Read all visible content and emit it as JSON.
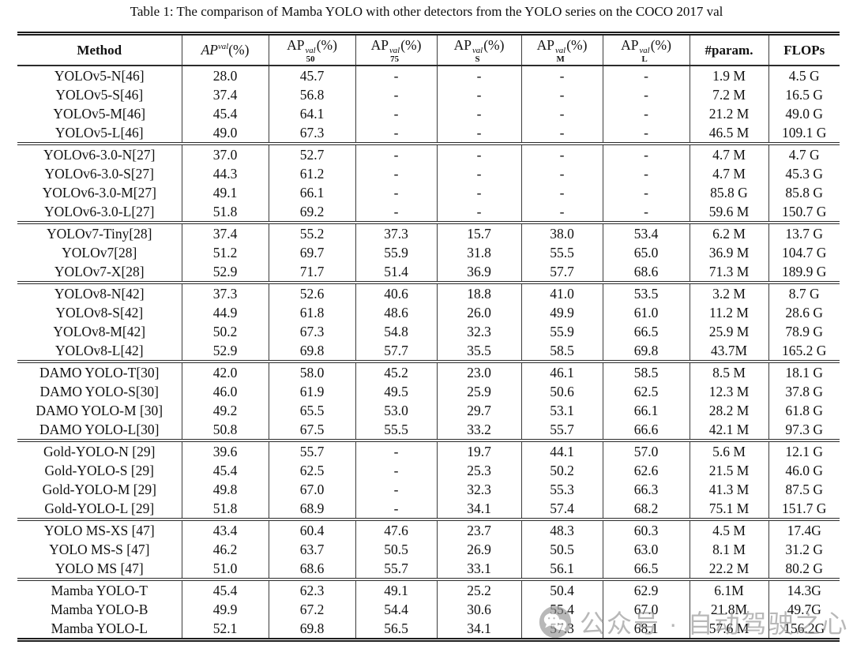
{
  "caption": "Table 1: The comparison of Mamba YOLO with other detectors from the YOLO series on the COCO 2017 val",
  "table": {
    "headers": [
      {
        "id": "method",
        "text": "Method"
      },
      {
        "id": "ap",
        "base": "AP",
        "sup": "val",
        "unit": "(%)",
        "italic": true
      },
      {
        "id": "ap50",
        "base": "AP",
        "sup": "val",
        "sub": "50",
        "unit": "(%)"
      },
      {
        "id": "ap75",
        "base": "AP",
        "sup": "val",
        "sub": "75",
        "unit": "(%)"
      },
      {
        "id": "aps",
        "base": "AP",
        "sup": "val",
        "sub": "S",
        "unit": "(%)"
      },
      {
        "id": "apm",
        "base": "AP",
        "sup": "val",
        "sub": "M",
        "unit": "(%)"
      },
      {
        "id": "apl",
        "base": "AP",
        "sup": "val",
        "sub": "L",
        "unit": "(%)"
      },
      {
        "id": "params",
        "text": "#param."
      },
      {
        "id": "flops",
        "text": "FLOPs"
      }
    ],
    "groups": [
      {
        "rows": [
          [
            "YOLOv5-N[46]",
            "28.0",
            "45.7",
            "-",
            "-",
            "-",
            "-",
            "1.9 M",
            "4.5 G"
          ],
          [
            "YOLOv5-S[46]",
            "37.4",
            "56.8",
            "-",
            "-",
            "-",
            "-",
            "7.2 M",
            "16.5 G"
          ],
          [
            "YOLOv5-M[46]",
            "45.4",
            "64.1",
            "-",
            "-",
            "-",
            "-",
            "21.2 M",
            "49.0 G"
          ],
          [
            "YOLOv5-L[46]",
            "49.0",
            "67.3",
            "-",
            "-",
            "-",
            "-",
            "46.5 M",
            "109.1 G"
          ]
        ]
      },
      {
        "rows": [
          [
            "YOLOv6-3.0-N[27]",
            "37.0",
            "52.7",
            "-",
            "-",
            "-",
            "-",
            "4.7 M",
            "4.7 G"
          ],
          [
            "YOLOv6-3.0-S[27]",
            "44.3",
            "61.2",
            "-",
            "-",
            "-",
            "-",
            "4.7 M",
            "45.3 G"
          ],
          [
            "YOLOv6-3.0-M[27]",
            "49.1",
            "66.1",
            "-",
            "-",
            "-",
            "-",
            "85.8 G",
            "85.8 G"
          ],
          [
            "YOLOv6-3.0-L[27]",
            "51.8",
            "69.2",
            "-",
            "-",
            "-",
            "-",
            "59.6 M",
            "150.7 G"
          ]
        ]
      },
      {
        "rows": [
          [
            "YOLOv7-Tiny[28]",
            "37.4",
            "55.2",
            "37.3",
            "15.7",
            "38.0",
            "53.4",
            "6.2 M",
            "13.7 G"
          ],
          [
            "YOLOv7[28]",
            "51.2",
            "69.7",
            "55.9",
            "31.8",
            "55.5",
            "65.0",
            "36.9 M",
            "104.7 G"
          ],
          [
            "YOLOv7-X[28]",
            "52.9",
            "71.7",
            "51.4",
            "36.9",
            "57.7",
            "68.6",
            "71.3 M",
            "189.9 G"
          ]
        ]
      },
      {
        "rows": [
          [
            "YOLOv8-N[42]",
            "37.3",
            "52.6",
            "40.6",
            "18.8",
            "41.0",
            "53.5",
            "3.2 M",
            "8.7 G"
          ],
          [
            "YOLOv8-S[42]",
            "44.9",
            "61.8",
            "48.6",
            "26.0",
            "49.9",
            "61.0",
            "11.2 M",
            "28.6 G"
          ],
          [
            "YOLOv8-M[42]",
            "50.2",
            "67.3",
            "54.8",
            "32.3",
            "55.9",
            "66.5",
            "25.9 M",
            "78.9 G"
          ],
          [
            "YOLOv8-L[42]",
            "52.9",
            "69.8",
            "57.7",
            "35.5",
            "58.5",
            "69.8",
            "43.7M",
            "165.2 G"
          ]
        ]
      },
      {
        "rows": [
          [
            "DAMO YOLO-T[30]",
            "42.0",
            "58.0",
            "45.2",
            "23.0",
            "46.1",
            "58.5",
            "8.5 M",
            "18.1 G"
          ],
          [
            "DAMO YOLO-S[30]",
            "46.0",
            "61.9",
            "49.5",
            "25.9",
            "50.6",
            "62.5",
            "12.3 M",
            "37.8 G"
          ],
          [
            "DAMO YOLO-M [30]",
            "49.2",
            "65.5",
            "53.0",
            "29.7",
            "53.1",
            "66.1",
            "28.2 M",
            "61.8 G"
          ],
          [
            "DAMO YOLO-L[30]",
            "50.8",
            "67.5",
            "55.5",
            "33.2",
            "55.7",
            "66.6",
            "42.1 M",
            "97.3 G"
          ]
        ]
      },
      {
        "rows": [
          [
            "Gold-YOLO-N [29]",
            "39.6",
            "55.7",
            "-",
            "19.7",
            "44.1",
            "57.0",
            "5.6 M",
            "12.1 G"
          ],
          [
            "Gold-YOLO-S [29]",
            "45.4",
            "62.5",
            "-",
            "25.3",
            "50.2",
            "62.6",
            "21.5 M",
            "46.0 G"
          ],
          [
            "Gold-YOLO-M [29]",
            "49.8",
            "67.0",
            "-",
            "32.3",
            "55.3",
            "66.3",
            "41.3 M",
            "87.5 G"
          ],
          [
            "Gold-YOLO-L [29]",
            "51.8",
            "68.9",
            "-",
            "34.1",
            "57.4",
            "68.2",
            "75.1 M",
            "151.7 G"
          ]
        ]
      },
      {
        "rows": [
          [
            "YOLO MS-XS [47]",
            "43.4",
            "60.4",
            "47.6",
            "23.7",
            "48.3",
            "60.3",
            "4.5 M",
            "17.4G"
          ],
          [
            "YOLO MS-S [47]",
            "46.2",
            "63.7",
            "50.5",
            "26.9",
            "50.5",
            "63.0",
            "8.1 M",
            "31.2 G"
          ],
          [
            "YOLO MS [47]",
            "51.0",
            "68.6",
            "55.7",
            "33.1",
            "56.1",
            "66.5",
            "22.2 M",
            "80.2 G"
          ]
        ]
      },
      {
        "rows": [
          [
            "Mamba YOLO-T",
            "45.4",
            "62.3",
            "49.1",
            "25.2",
            "50.4",
            "62.9",
            "6.1M",
            "14.3G"
          ],
          [
            "Mamba YOLO-B",
            "49.9",
            "67.2",
            "54.4",
            "30.6",
            "55.4",
            "67.0",
            "21.8M",
            "49.7G"
          ],
          [
            "Mamba YOLO-L",
            "52.1",
            "69.8",
            "56.5",
            "34.1",
            "57.3",
            "68.1",
            "57.6 M",
            "156.2G"
          ]
        ]
      }
    ]
  },
  "watermark": {
    "icon": "wechat-icon",
    "text": "公众号 · 自动驾驶之心"
  }
}
